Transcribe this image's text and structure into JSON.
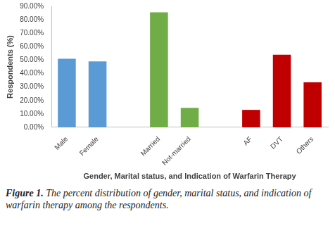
{
  "chart_data": {
    "type": "bar",
    "x_label": "Gender, Marital status, and Indication of Warfarin Therapy",
    "y_label": "Respondents (%)",
    "categories": [
      "Male",
      "Female",
      null,
      "Married",
      "Not-married",
      null,
      "AF",
      "DVT",
      "Others"
    ],
    "values": [
      51,
      49,
      null,
      85.5,
      14.5,
      null,
      13,
      54,
      33.5
    ],
    "colors": [
      "#5b9bd5",
      "#5b9bd5",
      null,
      "#70ad47",
      "#70ad47",
      null,
      "#c00000",
      "#c00000",
      "#c00000"
    ],
    "ylim": [
      0,
      90
    ],
    "yticks": [
      {
        "value": 0,
        "label": "0.00%"
      },
      {
        "value": 10,
        "label": "10.00%"
      },
      {
        "value": 20,
        "label": "20.00%"
      },
      {
        "value": 30,
        "label": "30.00%"
      },
      {
        "value": 40,
        "label": "40.00%"
      },
      {
        "value": 50,
        "label": "50.00%"
      },
      {
        "value": 60,
        "label": "60.00%"
      },
      {
        "value": 70,
        "label": "70.00%"
      },
      {
        "value": 80,
        "label": "80.00%"
      },
      {
        "value": 90,
        "label": "90.00%"
      }
    ],
    "grid": false
  },
  "caption": {
    "label": "Figure 1.",
    "text": "The percent distribution of gender, marital status, and indication of warfarin therapy among the respondents."
  }
}
